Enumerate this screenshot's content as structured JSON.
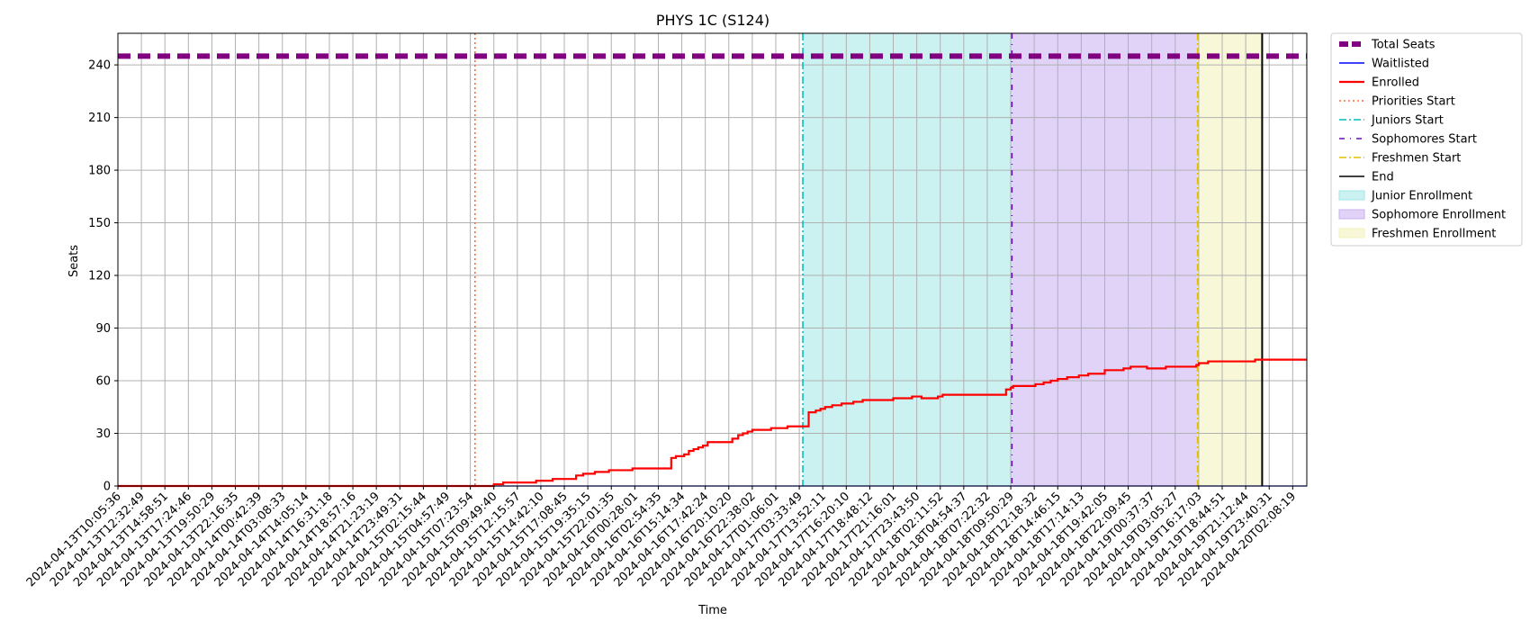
{
  "chart_data": {
    "type": "line",
    "title": "PHYS 1C (S124)",
    "xlabel": "Time",
    "ylabel": "Seats",
    "ylim": [
      0,
      258
    ],
    "yticks": [
      0,
      30,
      60,
      90,
      120,
      150,
      180,
      210,
      240
    ],
    "grid": true,
    "legend_position": "outside-top-right",
    "x_ticks": [
      "2024-04-13T10:05:36",
      "2024-04-13T12:32:49",
      "2024-04-13T14:58:51",
      "2024-04-13T17:24:46",
      "2024-04-13T19:50:29",
      "2024-04-13T22:16:35",
      "2024-04-14T00:42:39",
      "2024-04-14T03:08:33",
      "2024-04-14T14:05:14",
      "2024-04-14T16:31:18",
      "2024-04-14T18:57:16",
      "2024-04-14T21:23:19",
      "2024-04-14T23:49:31",
      "2024-04-15T02:15:44",
      "2024-04-15T04:57:49",
      "2024-04-15T07:23:54",
      "2024-04-15T09:49:40",
      "2024-04-15T12:15:57",
      "2024-04-15T14:42:10",
      "2024-04-15T17:08:45",
      "2024-04-15T19:35:15",
      "2024-04-15T22:01:35",
      "2024-04-16T00:28:01",
      "2024-04-16T02:54:35",
      "2024-04-16T15:14:34",
      "2024-04-16T17:42:24",
      "2024-04-16T20:10:20",
      "2024-04-16T22:38:02",
      "2024-04-17T01:06:01",
      "2024-04-17T03:33:49",
      "2024-04-17T13:52:11",
      "2024-04-17T16:20:10",
      "2024-04-17T18:48:12",
      "2024-04-17T21:16:01",
      "2024-04-17T23:43:50",
      "2024-04-18T02:11:52",
      "2024-04-18T04:54:37",
      "2024-04-18T07:22:32",
      "2024-04-18T09:50:29",
      "2024-04-18T12:18:32",
      "2024-04-18T14:46:15",
      "2024-04-18T17:14:13",
      "2024-04-18T19:42:05",
      "2024-04-18T22:09:45",
      "2024-04-19T00:37:37",
      "2024-04-19T03:05:27",
      "2024-04-19T16:17:03",
      "2024-04-19T18:44:51",
      "2024-04-19T21:12:44",
      "2024-04-19T23:40:31",
      "2024-04-20T02:08:19"
    ],
    "x_max_index": 50.6,
    "series": [
      {
        "name": "Total Seats",
        "color": "#800080",
        "style": "dashed-thick",
        "points": [
          [
            0,
            245
          ],
          [
            50.6,
            245
          ]
        ]
      },
      {
        "name": "Waitlisted",
        "color": "#0000ff",
        "style": "solid-thin",
        "points": [
          [
            0,
            0
          ],
          [
            50.6,
            0
          ]
        ]
      },
      {
        "name": "Enrolled",
        "color": "#ff0000",
        "style": "solid-step",
        "points": [
          [
            0,
            0
          ],
          [
            15.85,
            0
          ],
          [
            16,
            1
          ],
          [
            16.4,
            2
          ],
          [
            17.8,
            3
          ],
          [
            18.5,
            4
          ],
          [
            19.5,
            6
          ],
          [
            19.8,
            7
          ],
          [
            20.3,
            8
          ],
          [
            20.9,
            9
          ],
          [
            21.9,
            10
          ],
          [
            23.55,
            16
          ],
          [
            23.75,
            17
          ],
          [
            24.1,
            18
          ],
          [
            24.3,
            20
          ],
          [
            24.5,
            21
          ],
          [
            24.7,
            22
          ],
          [
            24.9,
            23
          ],
          [
            25.1,
            25
          ],
          [
            26,
            25
          ],
          [
            26.15,
            27
          ],
          [
            26.4,
            29
          ],
          [
            26.6,
            30
          ],
          [
            26.8,
            31
          ],
          [
            27,
            32
          ],
          [
            27.8,
            33
          ],
          [
            28.5,
            34
          ],
          [
            29.3,
            34
          ],
          [
            29.4,
            42
          ],
          [
            29.7,
            43
          ],
          [
            29.9,
            44
          ],
          [
            30.1,
            45
          ],
          [
            30.4,
            46
          ],
          [
            30.8,
            47
          ],
          [
            31.3,
            48
          ],
          [
            31.7,
            49
          ],
          [
            33,
            50
          ],
          [
            33.8,
            51
          ],
          [
            34.2,
            50
          ],
          [
            34.9,
            51
          ],
          [
            35.1,
            52
          ],
          [
            37.6,
            52
          ],
          [
            37.8,
            55
          ],
          [
            38,
            56
          ],
          [
            38.1,
            57
          ],
          [
            39.05,
            58
          ],
          [
            39.4,
            59
          ],
          [
            39.7,
            60
          ],
          [
            40,
            61
          ],
          [
            40.4,
            62
          ],
          [
            40.9,
            63
          ],
          [
            41.3,
            64
          ],
          [
            42,
            66
          ],
          [
            42.8,
            67
          ],
          [
            43.1,
            68
          ],
          [
            43.8,
            67
          ],
          [
            44.6,
            68
          ],
          [
            45.9,
            69
          ],
          [
            46,
            70
          ],
          [
            46.4,
            71
          ],
          [
            48.4,
            72
          ],
          [
            50.6,
            72
          ]
        ]
      }
    ],
    "vertical_lines": [
      {
        "name": "Priorities Start",
        "color": "#ff6633",
        "style": "dotted",
        "x": 15.2
      },
      {
        "name": "Juniors Start",
        "color": "#00bfbf",
        "style": "dashdot",
        "x": 29.15
      },
      {
        "name": "Sophomores Start",
        "color": "#6a0dad",
        "style": "dashdot-sparse",
        "x": 38.05
      },
      {
        "name": "Freshmen Start",
        "color": "#e6c000",
        "style": "dashdot",
        "x": 45.95
      },
      {
        "name": "End",
        "color": "#000000",
        "style": "solid",
        "x": 48.7
      }
    ],
    "spans": [
      {
        "name": "Junior Enrollment",
        "color": "#a0e6e6",
        "from": 29.15,
        "to": 38.05
      },
      {
        "name": "Sophomore Enrollment",
        "color": "#c8aff0",
        "from": 38.05,
        "to": 45.95
      },
      {
        "name": "Freshmen Enrollment",
        "color": "#f2f2b8",
        "from": 45.95,
        "to": 48.7
      }
    ],
    "legend": [
      "Total Seats",
      "Waitlisted",
      "Enrolled",
      "Priorities Start",
      "Juniors Start",
      "Sophomores Start",
      "Freshmen Start",
      "End",
      "Junior Enrollment",
      "Sophomore Enrollment",
      "Freshmen Enrollment"
    ]
  }
}
